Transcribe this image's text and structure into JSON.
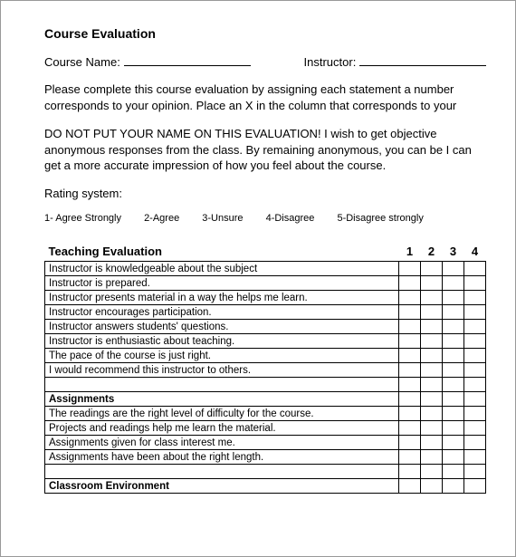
{
  "title": "Course Evaluation",
  "fields": {
    "course_label": "Course Name:",
    "instructor_label": "Instructor:"
  },
  "intro1": "Please complete this course evaluation by assigning each statement a number corresponds to your opinion.  Place an X in the column that corresponds to your",
  "intro2": "DO NOT PUT YOUR NAME ON THIS EVALUATION! I wish to get objective anonymous responses from the class. By remaining anonymous, you can be I can get a more accurate impression of how you feel about the course.",
  "rating_label": "Rating system:",
  "scale": {
    "s1": "1- Agree Strongly",
    "s2": "2-Agree",
    "s3": "3-Unsure",
    "s4": "4-Disagree",
    "s5": "5-Disagree strongly"
  },
  "table": {
    "header_label": "Teaching Evaluation",
    "col1": "1",
    "col2": "2",
    "col3": "3",
    "col4": "4",
    "rows": {
      "r0": "Instructor is knowledgeable about the subject",
      "r1": "Instructor is prepared.",
      "r2": "Instructor presents material in a way the helps me learn.",
      "r3": "Instructor encourages participation.",
      "r4": "Instructor answers students' questions.",
      "r5": "Instructor is enthusiastic about teaching.",
      "r6": "The pace of the course is just right.",
      "r7": "I would recommend this instructor to others.",
      "sec2": "Assignments",
      "r8": "The readings are the right level of difficulty for the course.",
      "r9": "Projects and readings help me learn the material.",
      "r10": "Assignments given for class interest me.",
      "r11": "Assignments have been about the right length.",
      "sec3": "Classroom Environment"
    }
  }
}
